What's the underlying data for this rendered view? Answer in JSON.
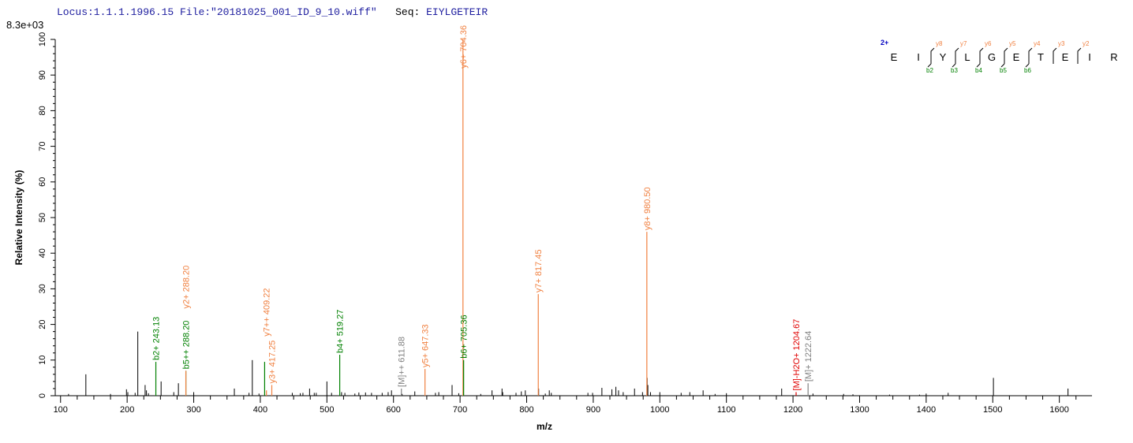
{
  "header": {
    "locus": "Locus:1.1.1.1996.15",
    "file": "File:\"20181025_001_ID_9_10.wiff\"",
    "seq_label": "Seq:",
    "seq_value": "EIYLGETEIR",
    "scale": "8.3e+03"
  },
  "colors": {
    "y_ion": "#f08040",
    "b_ion": "#008000",
    "precursor": "#808080",
    "water_loss": "#e00000",
    "unassigned": "#000000",
    "charge": "#0000c0"
  },
  "sequence_map": {
    "charge": "2+",
    "residues": [
      "E",
      "I",
      "Y",
      "L",
      "G",
      "E",
      "T",
      "E",
      "I",
      "R"
    ],
    "y_labels": [
      "y8",
      "y7",
      "y6",
      "y5",
      "y4",
      "y3",
      "y2"
    ],
    "b_labels": [
      "b2",
      "b3",
      "b4",
      "b5",
      "b6"
    ]
  },
  "chart_data": {
    "type": "bar",
    "xlabel": "m/z",
    "ylabel": "Relative   Intensity (%)",
    "xlim": [
      92,
      1649
    ],
    "ylim": [
      0,
      100
    ],
    "xticks": [
      100,
      200,
      300,
      400,
      500,
      600,
      700,
      800,
      900,
      1000,
      1100,
      1200,
      1300,
      1400,
      1500,
      1600
    ],
    "yticks": [
      0,
      10,
      20,
      30,
      40,
      50,
      60,
      70,
      80,
      90,
      100
    ],
    "grid": false,
    "annotated_peaks": [
      {
        "mz": 243.13,
        "intensity": 9.5,
        "type": "b",
        "label": "b2+ 243.13"
      },
      {
        "mz": 288.2,
        "intensity": 7.0,
        "type": "b",
        "label": "b5++ 288.20"
      },
      {
        "mz": 288.2,
        "intensity": 7.0,
        "type": "y",
        "label": "y2+ 288.20",
        "label_height": 24
      },
      {
        "mz": 406.5,
        "intensity": 9.5,
        "type": "b",
        "label": ""
      },
      {
        "mz": 409.22,
        "intensity": 1.5,
        "type": "y",
        "label": "y7++ 409.22",
        "label_height": 12
      },
      {
        "mz": 417.25,
        "intensity": 3.0,
        "type": "y",
        "label": "y3+ 417.25"
      },
      {
        "mz": 519.27,
        "intensity": 11.5,
        "type": "b",
        "label": "b4+ 519.27"
      },
      {
        "mz": 611.88,
        "intensity": 2.0,
        "type": "precursor",
        "label": "[M]++ 611.88"
      },
      {
        "mz": 647.33,
        "intensity": 7.5,
        "type": "y",
        "label": "y5+ 647.33"
      },
      {
        "mz": 704.36,
        "intensity": 100,
        "type": "y",
        "label": "y6+ 704.36"
      },
      {
        "mz": 705.36,
        "intensity": 10.0,
        "type": "b",
        "label": "b6+ 705.36"
      },
      {
        "mz": 817.45,
        "intensity": 28.5,
        "type": "y",
        "label": "y7+ 817.45"
      },
      {
        "mz": 980.5,
        "intensity": 46.0,
        "type": "y",
        "label": "y8+ 980.50"
      },
      {
        "mz": 1204.67,
        "intensity": 1.0,
        "type": "water_loss",
        "label": "[M]-H2O+ 1204.67"
      },
      {
        "mz": 1222.64,
        "intensity": 3.5,
        "type": "precursor",
        "label": "[M]+ 1222.64"
      }
    ],
    "unassigned_peaks": [
      [
        112,
        0.5
      ],
      [
        138,
        6
      ],
      [
        175,
        0.5
      ],
      [
        199,
        1.8
      ],
      [
        201,
        1
      ],
      [
        212,
        0.8
      ],
      [
        216,
        18
      ],
      [
        227,
        3
      ],
      [
        229,
        1.5
      ],
      [
        232,
        0.7
      ],
      [
        251,
        4
      ],
      [
        270,
        1
      ],
      [
        277,
        3.5
      ],
      [
        300,
        1
      ],
      [
        361,
        2
      ],
      [
        383,
        0.8
      ],
      [
        388,
        10
      ],
      [
        398,
        0.6
      ],
      [
        448,
        0.8
      ],
      [
        460,
        0.7
      ],
      [
        464,
        0.8
      ],
      [
        474,
        2
      ],
      [
        481,
        0.8
      ],
      [
        484,
        0.8
      ],
      [
        500,
        4
      ],
      [
        507,
        0.8
      ],
      [
        522,
        1
      ],
      [
        527,
        0.8
      ],
      [
        542,
        0.6
      ],
      [
        548,
        0.9
      ],
      [
        558,
        0.9
      ],
      [
        567,
        0.8
      ],
      [
        583,
        0.8
      ],
      [
        592,
        1
      ],
      [
        597,
        1.5
      ],
      [
        613,
        0.5
      ],
      [
        632,
        1.2
      ],
      [
        663,
        0.8
      ],
      [
        668,
        1
      ],
      [
        688,
        3
      ],
      [
        698,
        0.7
      ],
      [
        705,
        0.6
      ],
      [
        731,
        0.5
      ],
      [
        748,
        1.5
      ],
      [
        763,
        2
      ],
      [
        764,
        1
      ],
      [
        784,
        0.8
      ],
      [
        792,
        1.2
      ],
      [
        798,
        1.5
      ],
      [
        818,
        2
      ],
      [
        828,
        0.6
      ],
      [
        834,
        1.5
      ],
      [
        837,
        0.8
      ],
      [
        892,
        0.8
      ],
      [
        899,
        0.8
      ],
      [
        913,
        2.2
      ],
      [
        928,
        1.8
      ],
      [
        934,
        2.5
      ],
      [
        938,
        1.5
      ],
      [
        945,
        1
      ],
      [
        962,
        2
      ],
      [
        974,
        1
      ],
      [
        981,
        5
      ],
      [
        982,
        3
      ],
      [
        986,
        1
      ],
      [
        1000,
        1
      ],
      [
        1032,
        0.8
      ],
      [
        1045,
        1
      ],
      [
        1065,
        1.5
      ],
      [
        1083,
        0.5
      ],
      [
        1100,
        0.7
      ],
      [
        1183,
        2
      ],
      [
        1230,
        0.6
      ],
      [
        1276,
        0.5
      ],
      [
        1290,
        0.4
      ],
      [
        1345,
        0.3
      ],
      [
        1390,
        0.3
      ],
      [
        1400,
        0.6
      ],
      [
        1433,
        0.8
      ],
      [
        1501,
        5
      ],
      [
        1613,
        2
      ]
    ]
  }
}
